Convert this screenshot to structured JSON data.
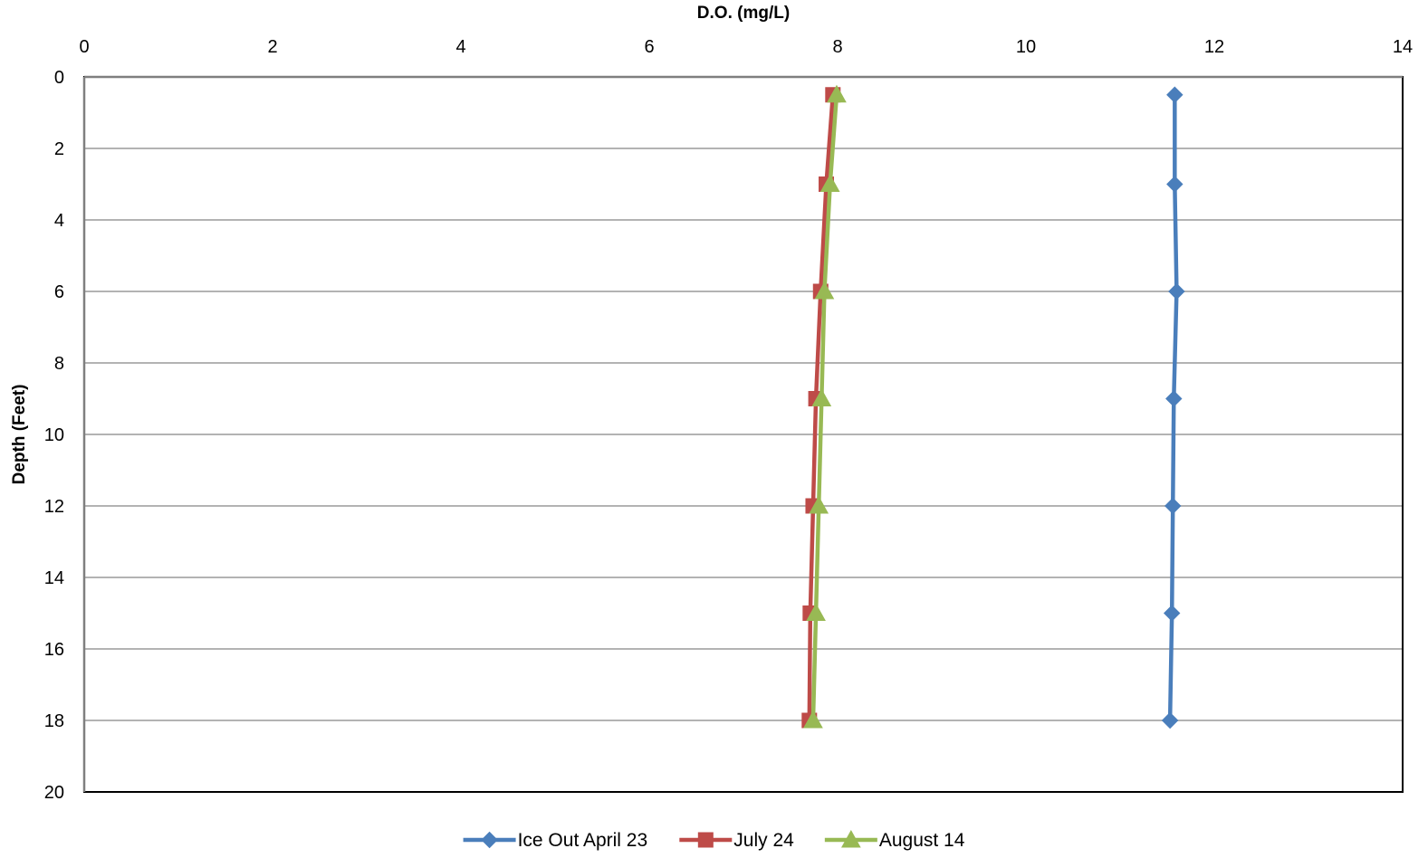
{
  "chart_data": {
    "type": "line",
    "title": "",
    "xlabel": "D.O. (mg/L)",
    "ylabel": "Depth (Feet)",
    "xlim": [
      0,
      14
    ],
    "ylim": [
      0,
      20
    ],
    "x_axis_position": "top",
    "y_axis_reversed": true,
    "xticks": [
      0,
      2,
      4,
      6,
      8,
      10,
      12,
      14
    ],
    "yticks": [
      0,
      2,
      4,
      6,
      8,
      10,
      12,
      14,
      16,
      18,
      20
    ],
    "grid": "horizontal",
    "legend_position": "bottom",
    "series": [
      {
        "name": "Ice Out April 23",
        "color": "#4a7ebb",
        "marker": "diamond",
        "points": [
          {
            "x": 11.58,
            "y": 0.5
          },
          {
            "x": 11.58,
            "y": 3
          },
          {
            "x": 11.6,
            "y": 6
          },
          {
            "x": 11.57,
            "y": 9
          },
          {
            "x": 11.56,
            "y": 12
          },
          {
            "x": 11.55,
            "y": 15
          },
          {
            "x": 11.53,
            "y": 18
          }
        ]
      },
      {
        "name": "July 24",
        "color": "#be4b48",
        "marker": "square",
        "points": [
          {
            "x": 7.95,
            "y": 0.5
          },
          {
            "x": 7.88,
            "y": 3
          },
          {
            "x": 7.82,
            "y": 6
          },
          {
            "x": 7.77,
            "y": 9
          },
          {
            "x": 7.74,
            "y": 12
          },
          {
            "x": 7.71,
            "y": 15
          },
          {
            "x": 7.7,
            "y": 18
          }
        ]
      },
      {
        "name": "August 14",
        "color": "#98b954",
        "marker": "triangle",
        "points": [
          {
            "x": 7.99,
            "y": 0.5
          },
          {
            "x": 7.92,
            "y": 3
          },
          {
            "x": 7.86,
            "y": 6
          },
          {
            "x": 7.83,
            "y": 9
          },
          {
            "x": 7.8,
            "y": 12
          },
          {
            "x": 7.77,
            "y": 15
          },
          {
            "x": 7.74,
            "y": 18
          }
        ]
      }
    ]
  }
}
